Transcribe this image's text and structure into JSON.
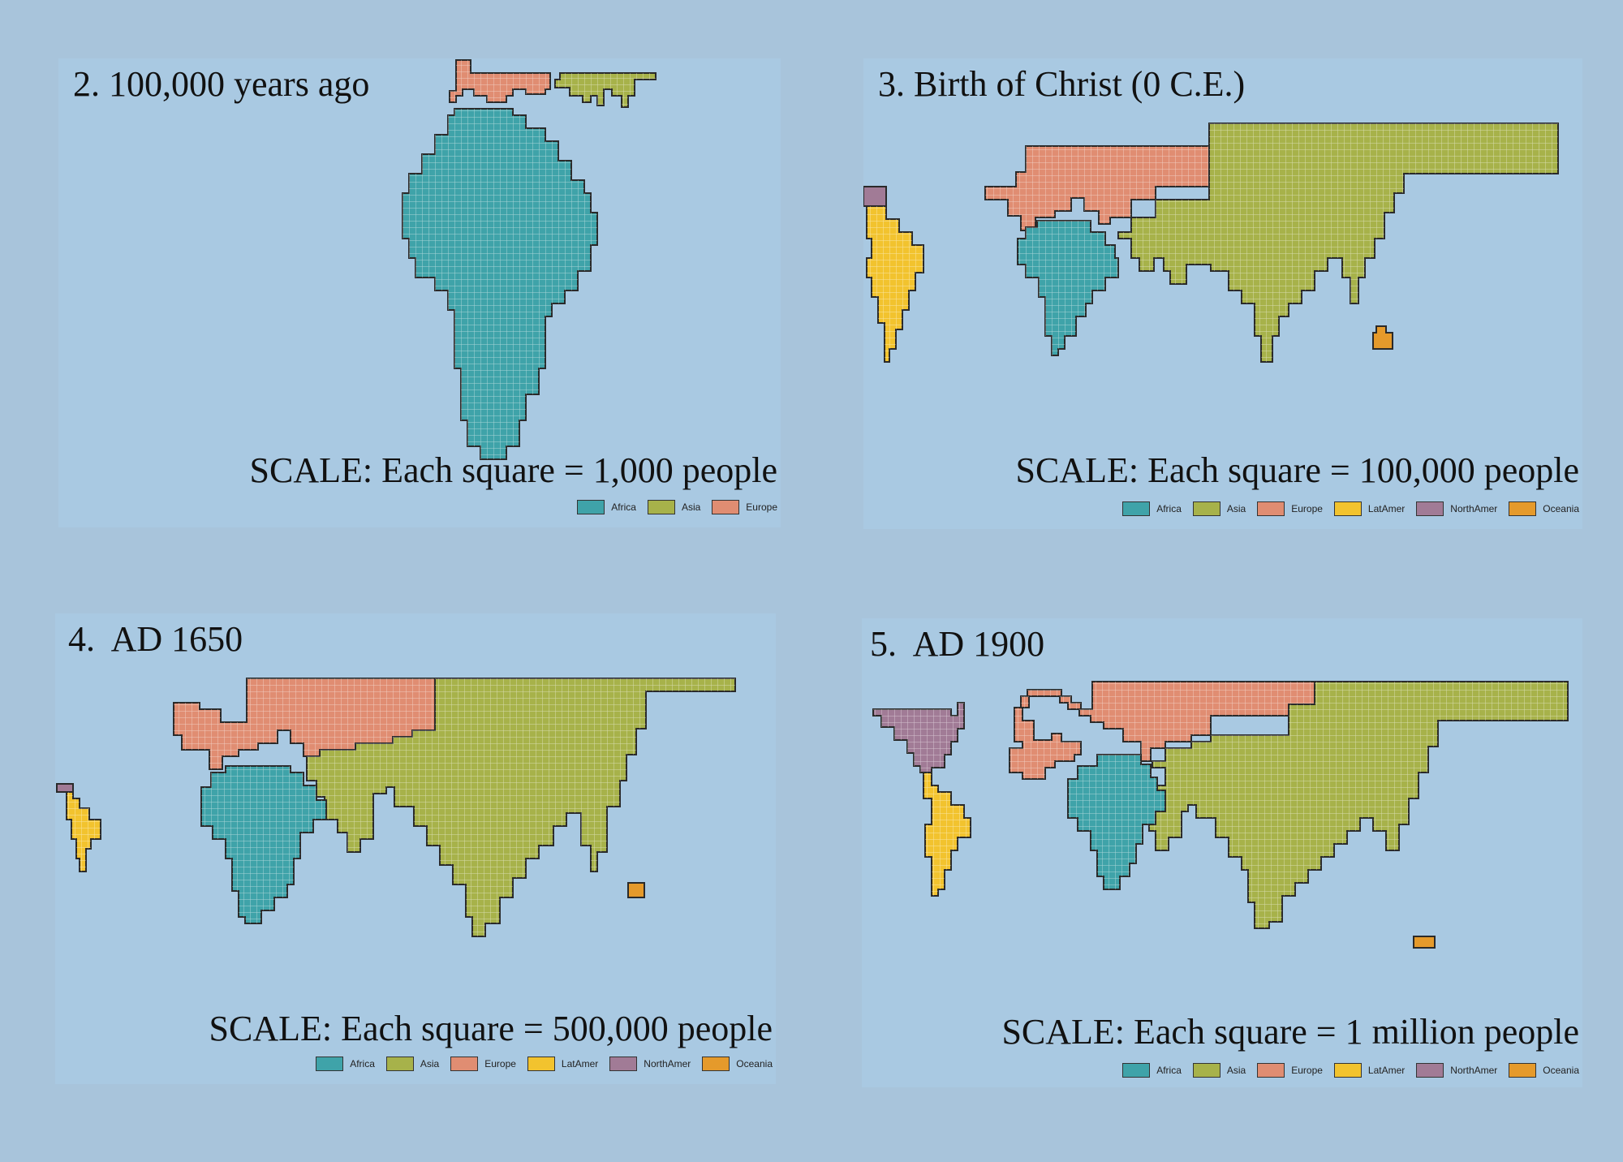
{
  "colors": {
    "Africa": "#3fa3a9",
    "Asia": "#a7b24a",
    "Europe": "#e08d72",
    "LatAmer": "#f2c32e",
    "NorthAmer": "#a17b96",
    "Oceania": "#e59a2b"
  },
  "panels": [
    {
      "title": "2. 100,000 years ago",
      "scale": "SCALE: Each square = 1,000 people",
      "legend": [
        "Africa",
        "Asia",
        "Europe"
      ]
    },
    {
      "title": "3. Birth of Christ (0 C.E.)",
      "scale": "SCALE: Each square = 100,000 people",
      "legend": [
        "Africa",
        "Asia",
        "Europe",
        "LatAmer",
        "NorthAmer",
        "Oceania"
      ]
    },
    {
      "title": "4.  AD 1650",
      "scale": "SCALE: Each square = 500,000 people",
      "legend": [
        "Africa",
        "Asia",
        "Europe",
        "LatAmer",
        "NorthAmer",
        "Oceania"
      ]
    },
    {
      "title": "5.  AD 1900",
      "scale": "SCALE: Each square = 1 million people",
      "legend": [
        "Africa",
        "Asia",
        "Europe",
        "LatAmer",
        "NorthAmer",
        "Oceania"
      ]
    }
  ]
}
